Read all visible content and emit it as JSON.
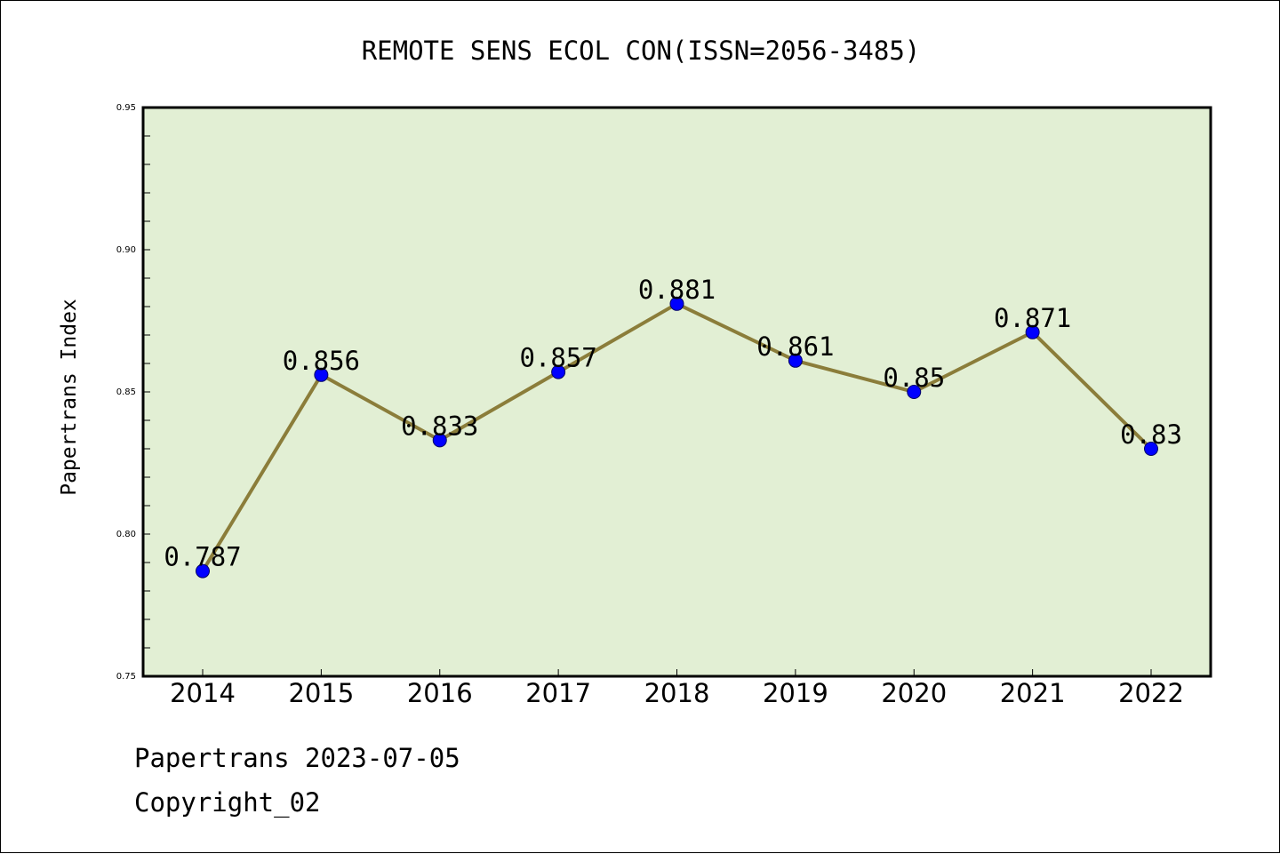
{
  "footer": {
    "date_line": "Papertrans 2023-07-05",
    "copyright": "Copyright_02"
  },
  "colors": {
    "plot_bg": "#e2efd4",
    "line": "#8b7d3a",
    "marker": "#0000ff",
    "axis": "#000000"
  },
  "chart_data": {
    "type": "line",
    "title": "REMOTE SENS ECOL CON(ISSN=2056-3485)",
    "xlabel": "",
    "ylabel": "Papertrans Index",
    "categories": [
      "2014",
      "2015",
      "2016",
      "2017",
      "2018",
      "2019",
      "2020",
      "2021",
      "2022"
    ],
    "series": [
      {
        "values": [
          0.787,
          0.856,
          0.833,
          0.857,
          0.881,
          0.861,
          0.85,
          0.871,
          0.83
        ],
        "labels": [
          "0.787",
          "0.856",
          "0.833",
          "0.857",
          "0.881",
          "0.861",
          "0.85",
          "0.871",
          "0.83"
        ]
      }
    ],
    "ylim": [
      0.75,
      0.95
    ],
    "yticks": [
      "0.75",
      "0.80",
      "0.85",
      "0.90",
      "0.95"
    ],
    "grid": false,
    "legend": "none"
  }
}
